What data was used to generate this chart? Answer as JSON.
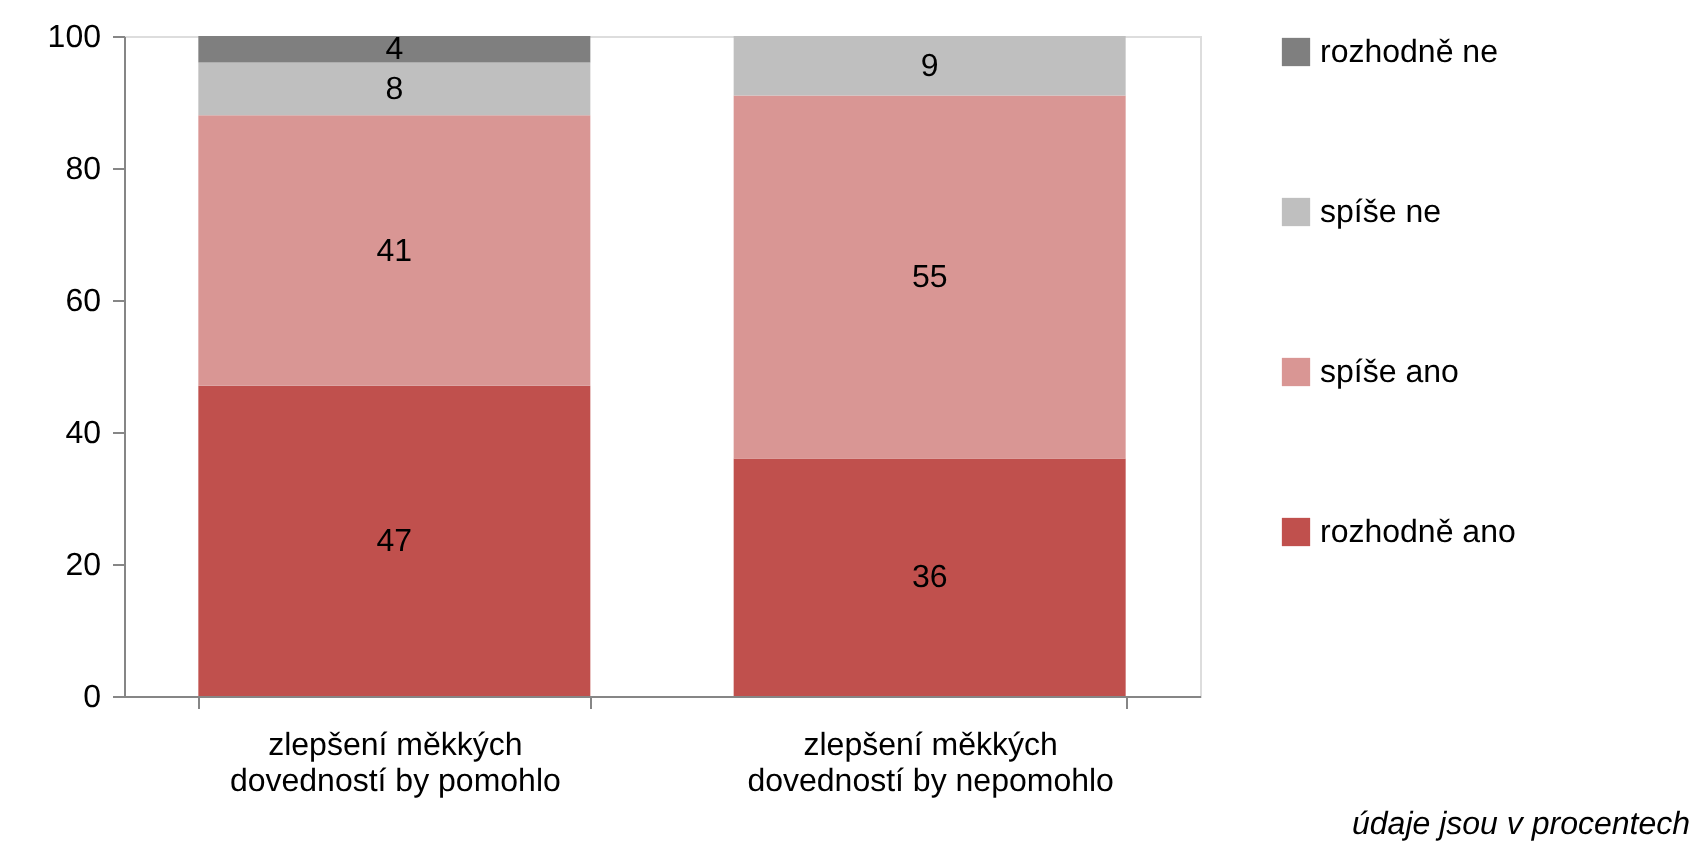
{
  "chart_data": {
    "type": "bar",
    "stacked": true,
    "categories": [
      "zlepšení měkkých dovedností by pomohlo",
      "zlepšení měkkých dovedností by nepomohlo"
    ],
    "series": [
      {
        "name": "rozhodně ano",
        "color": "#c0504d",
        "values": [
          47,
          36
        ]
      },
      {
        "name": "spíše ano",
        "color": "#d99694",
        "values": [
          41,
          55
        ]
      },
      {
        "name": "spíše ne",
        "color": "#bfbfbf",
        "values": [
          8,
          9
        ]
      },
      {
        "name": "rozhodně ne",
        "color": "#7f7f7f",
        "values": [
          4,
          null
        ]
      }
    ],
    "ylim": [
      0,
      100
    ],
    "yticks": [
      0,
      20,
      40,
      60,
      80,
      100
    ],
    "grid": false,
    "legend": "right",
    "data_labels": true,
    "annotations": [
      "údaje jsou v procentech"
    ]
  }
}
